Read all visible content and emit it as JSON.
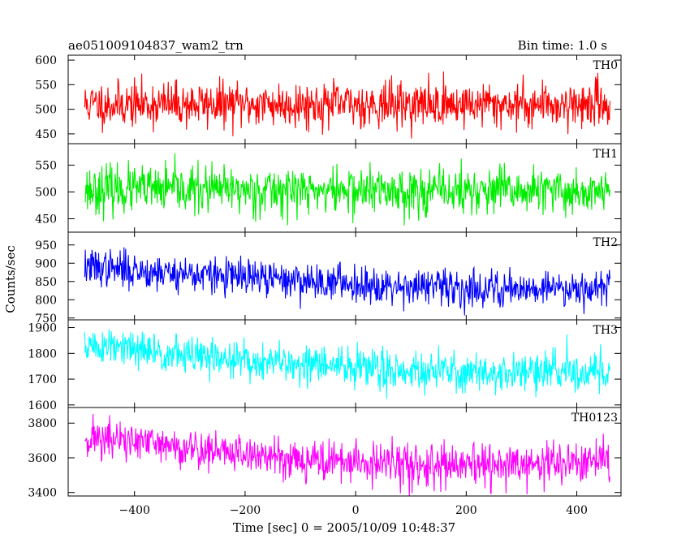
{
  "chart_data": {
    "type": "line",
    "title": "ae051009104837_wam2_trn",
    "subtitle": "Bin time: 1.0 s",
    "xlabel": "Time [sec] 0 = 2005/10/09 10:48:37",
    "ylabel": "Counts/sec",
    "xlim": [
      -520,
      480
    ],
    "x_range": [
      -490,
      460
    ],
    "x_step": 1,
    "xticks": [
      -400,
      -200,
      0,
      200,
      400
    ],
    "xtick_labels": [
      "−400",
      "−200",
      "0",
      "200",
      "400"
    ],
    "grid": false,
    "panels": [
      {
        "name": "TH0",
        "color": "#ff0000",
        "ylim": [
          430,
          610
        ],
        "yticks": [
          450,
          500,
          550,
          600
        ],
        "ytick_labels": [
          "450",
          "500",
          "550",
          "600"
        ],
        "trend": [
          [
            -490,
            510
          ],
          [
            460,
            510
          ]
        ],
        "noise": 23,
        "seed": 11
      },
      {
        "name": "TH1",
        "color": "#00ee00",
        "ylim": [
          425,
          590
        ],
        "yticks": [
          450,
          500,
          550
        ],
        "ytick_labels": [
          "450",
          "500",
          "550"
        ],
        "trend": [
          [
            -490,
            505
          ],
          [
            460,
            500
          ]
        ],
        "noise": 22,
        "seed": 23
      },
      {
        "name": "TH2",
        "color": "#0000ff",
        "ylim": [
          745,
          985
        ],
        "yticks": [
          750,
          800,
          850,
          900,
          950
        ],
        "ytick_labels": [
          "750",
          "800",
          "850",
          "900",
          "950"
        ],
        "trend": [
          [
            -490,
            890
          ],
          [
            -200,
            860
          ],
          [
            0,
            845
          ],
          [
            200,
            830
          ],
          [
            460,
            835
          ]
        ],
        "noise": 25,
        "seed": 37
      },
      {
        "name": "TH3",
        "color": "#00ffff",
        "ylim": [
          1590,
          1930
        ],
        "yticks": [
          1600,
          1700,
          1800,
          1900
        ],
        "ytick_labels": [
          "1600",
          "1700",
          "1800",
          "1900"
        ],
        "trend": [
          [
            -490,
            1830
          ],
          [
            -200,
            1770
          ],
          [
            0,
            1745
          ],
          [
            200,
            1725
          ],
          [
            460,
            1730
          ]
        ],
        "noise": 38,
        "seed": 51
      },
      {
        "name": "TH0123",
        "color": "#ff00ff",
        "ylim": [
          3380,
          3890
        ],
        "yticks": [
          3400,
          3600,
          3800
        ],
        "ytick_labels": [
          "3400",
          "3600",
          "3800"
        ],
        "trend": [
          [
            -490,
            3720
          ],
          [
            -200,
            3620
          ],
          [
            0,
            3570
          ],
          [
            200,
            3545
          ],
          [
            460,
            3580
          ]
        ],
        "noise": 60,
        "seed": 71
      }
    ]
  }
}
